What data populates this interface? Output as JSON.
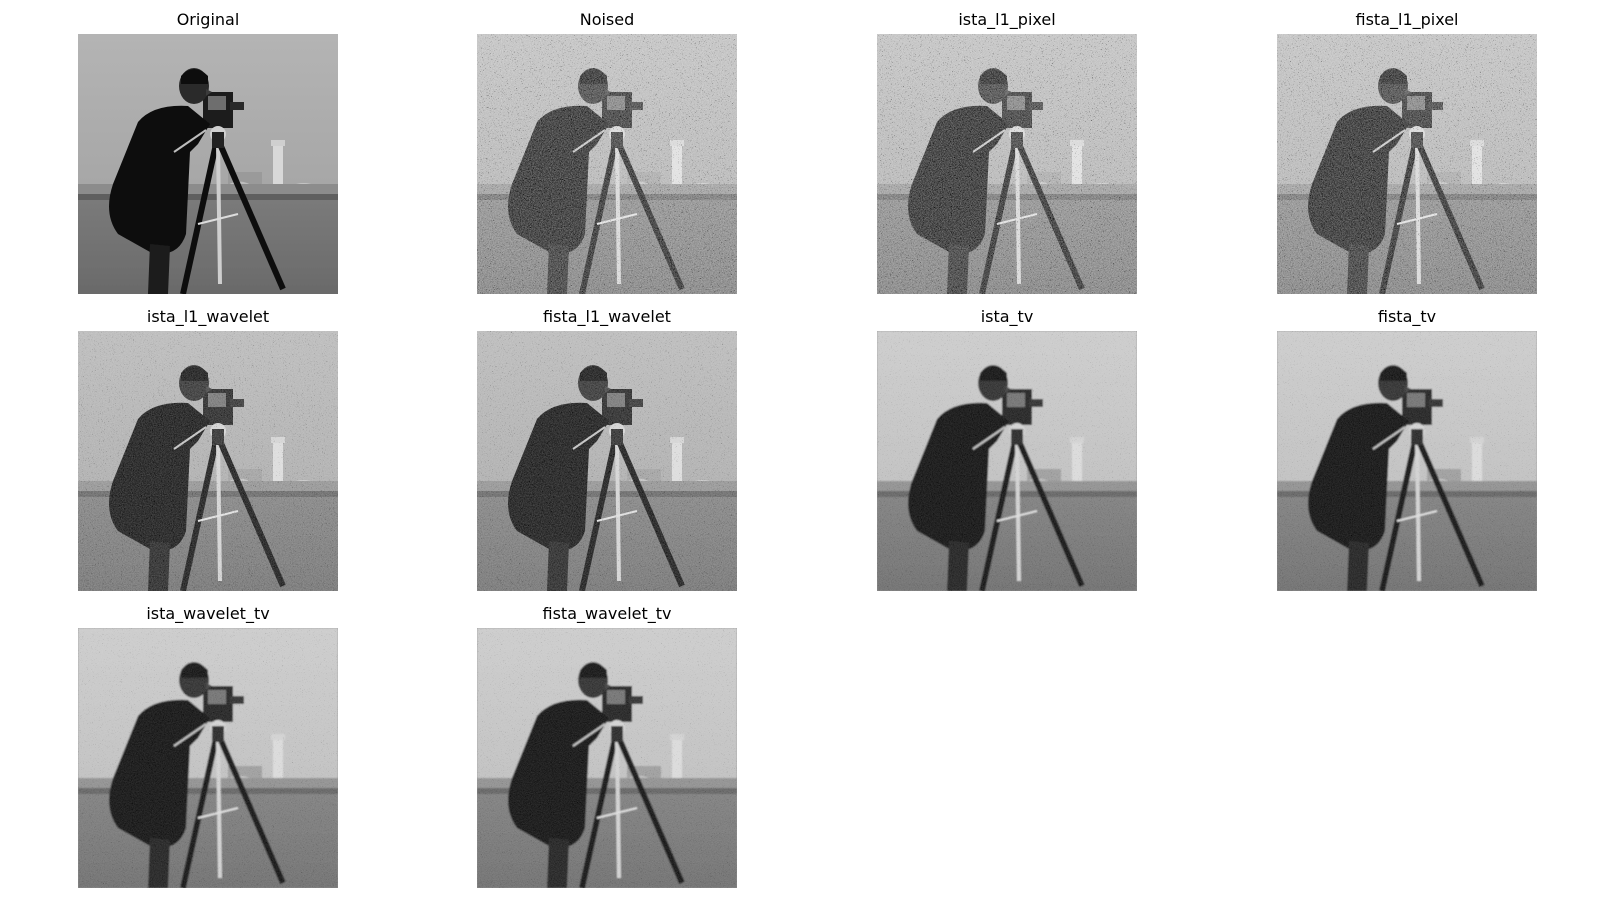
{
  "figure": {
    "panels": [
      {
        "title": "Original",
        "noise": "none",
        "style": "sharp"
      },
      {
        "title": "Noised",
        "noise": "heavy",
        "style": "sharp"
      },
      {
        "title": "ista_l1_pixel",
        "noise": "heavy",
        "style": "sharp"
      },
      {
        "title": "fista_l1_pixel",
        "noise": "heavy",
        "style": "sharp"
      },
      {
        "title": "ista_l1_wavelet",
        "noise": "medium",
        "style": "sharp"
      },
      {
        "title": "fista_l1_wavelet",
        "noise": "medium",
        "style": "sharp"
      },
      {
        "title": "ista_tv",
        "noise": "light",
        "style": "smooth"
      },
      {
        "title": "fista_tv",
        "noise": "light",
        "style": "smooth"
      },
      {
        "title": "ista_wavelet_tv",
        "noise": "light",
        "style": "smooth"
      },
      {
        "title": "fista_wavelet_tv",
        "noise": "light",
        "style": "smooth"
      }
    ]
  }
}
